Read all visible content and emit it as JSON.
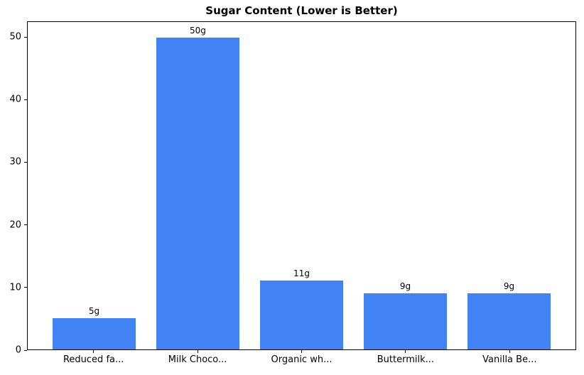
{
  "chart_data": {
    "type": "bar",
    "title": "Sugar Content (Lower is Better)",
    "categories": [
      "Reduced fa...",
      "Milk Choco...",
      "Organic wh...",
      "Buttermilk...",
      "Vanilla Be..."
    ],
    "values": [
      5,
      50,
      11,
      9,
      9
    ],
    "bar_labels": [
      "5g",
      "50g",
      "11g",
      "9g",
      "9g"
    ],
    "xlabel": "",
    "ylabel": "",
    "ylim": [
      0,
      52.5
    ],
    "yticks": [
      0,
      10,
      20,
      30,
      40,
      50
    ],
    "bar_width_fraction": 0.8,
    "grid": false,
    "legend": "none",
    "colors": {
      "bar": "#4183f4",
      "text": "#000000",
      "spine": "#000000",
      "background": "#ffffff"
    }
  }
}
